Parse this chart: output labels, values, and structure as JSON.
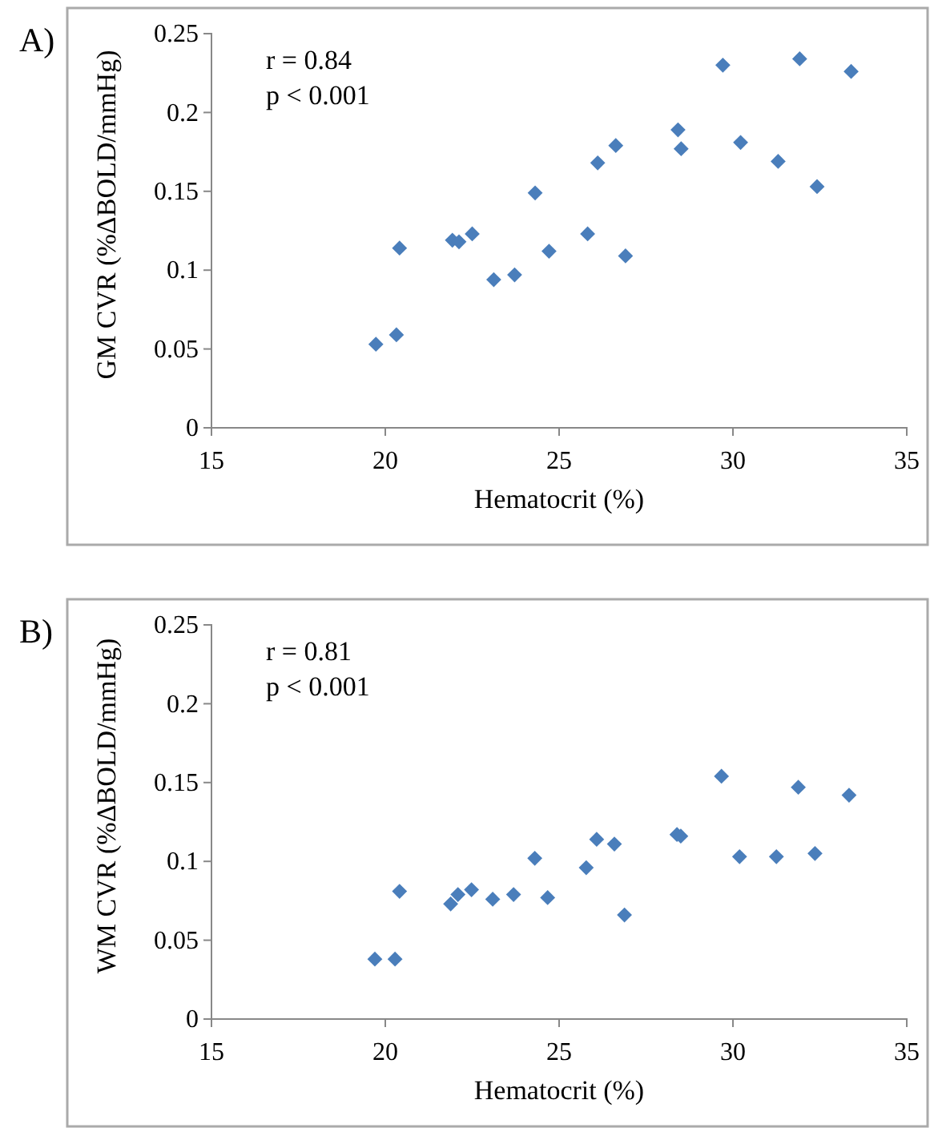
{
  "chart_data": [
    {
      "type": "scatter",
      "title": "A)",
      "xlabel": "Hematocrit (%)",
      "ylabel": "GM CVR (%ΔBOLD/mmHg)",
      "annotations": [
        "r = 0.84",
        "p < 0.001"
      ],
      "marker": "diamond",
      "grid": false,
      "xlim": [
        15,
        35
      ],
      "xticks": [
        15,
        20,
        25,
        30,
        35
      ],
      "ylim": [
        0,
        0.25
      ],
      "yticks": [
        0,
        0.05,
        0.1,
        0.15,
        0.2,
        0.25
      ],
      "series": [
        {
          "color": "#4a7ebb",
          "x": [
            19.73,
            20.32,
            20.41,
            21.93,
            22.12,
            22.5,
            23.12,
            23.72,
            24.31,
            24.71,
            25.82,
            26.11,
            26.63,
            26.91,
            28.42,
            28.51,
            29.71,
            30.22,
            31.3,
            31.92,
            32.42,
            33.4
          ],
          "values": [
            0.053,
            0.059,
            0.114,
            0.119,
            0.118,
            0.123,
            0.094,
            0.097,
            0.149,
            0.112,
            0.123,
            0.168,
            0.179,
            0.109,
            0.189,
            0.177,
            0.23,
            0.181,
            0.169,
            0.234,
            0.153,
            0.226
          ]
        }
      ]
    },
    {
      "type": "scatter",
      "title": "B)",
      "xlabel": "Hematocrit (%)",
      "ylabel": "WM CVR (%ΔBOLD/mmHg)",
      "annotations": [
        "r = 0.81",
        "p < 0.001"
      ],
      "marker": "diamond",
      "grid": false,
      "xlim": [
        15,
        35
      ],
      "xticks": [
        15,
        20,
        25,
        30,
        35
      ],
      "ylim": [
        0,
        0.25
      ],
      "yticks": [
        0,
        0.05,
        0.1,
        0.15,
        0.2,
        0.25
      ],
      "series": [
        {
          "color": "#4a7ebb",
          "x": [
            19.7,
            20.28,
            20.41,
            21.88,
            22.09,
            22.48,
            23.09,
            23.69,
            24.3,
            24.67,
            25.78,
            26.08,
            26.59,
            26.88,
            28.39,
            28.5,
            29.67,
            30.19,
            31.25,
            31.88,
            32.36,
            33.34
          ],
          "values": [
            0.038,
            0.038,
            0.081,
            0.073,
            0.079,
            0.082,
            0.076,
            0.079,
            0.102,
            0.077,
            0.096,
            0.114,
            0.111,
            0.066,
            0.117,
            0.116,
            0.154,
            0.103,
            0.103,
            0.147,
            0.105,
            0.142
          ]
        }
      ]
    }
  ]
}
